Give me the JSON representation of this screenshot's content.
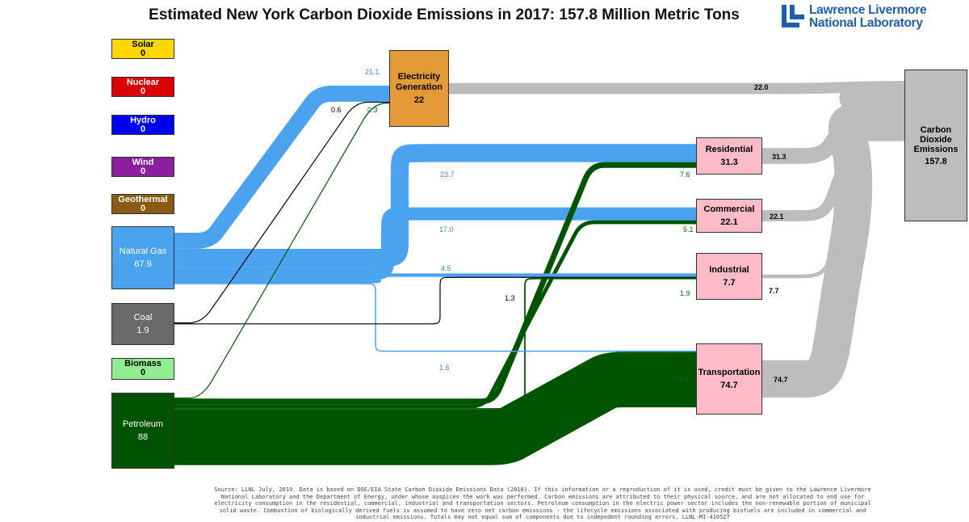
{
  "title": "Estimated New York Carbon Dioxide Emissions in 2017: 157.8 Million Metric Tons",
  "logo": {
    "line1": "Lawrence Livermore",
    "line2": "National Laboratory"
  },
  "colors": {
    "gas": "#4ba3f0",
    "petroleum": "#005400",
    "coal": "#000000",
    "emissions": "#bdbdbd",
    "enduse": "#ffbcc8",
    "electricity": "#e59a38"
  },
  "sources": [
    {
      "id": "solar",
      "name": "Solar",
      "value": "0",
      "color": "#ffd700",
      "text": "#000"
    },
    {
      "id": "nuclear",
      "name": "Nuclear",
      "value": "0",
      "color": "#d90000",
      "text": "#fff"
    },
    {
      "id": "hydro",
      "name": "Hydro",
      "value": "0",
      "color": "#0000f0",
      "text": "#fff"
    },
    {
      "id": "wind",
      "name": "Wind",
      "value": "0",
      "color": "#8b1f9e",
      "text": "#fff"
    },
    {
      "id": "geothermal",
      "name": "Geothermal",
      "value": "0",
      "color": "#8b5a12",
      "text": "#fff"
    },
    {
      "id": "gas",
      "name": "Natural Gas",
      "value": "67.9",
      "color": "#4ba3f0",
      "text": "#fff"
    },
    {
      "id": "coal",
      "name": "Coal",
      "value": "1.9",
      "color": "#6a6a6a",
      "text": "#fff"
    },
    {
      "id": "biomass",
      "name": "Biomass",
      "value": "0",
      "color": "#90ee90",
      "text": "#000"
    },
    {
      "id": "petroleum",
      "name": "Petroleum",
      "value": "88",
      "color": "#005400",
      "text": "#fff"
    }
  ],
  "sectors": [
    {
      "id": "electricity",
      "name": "Electricity Generation",
      "value": "22"
    },
    {
      "id": "residential",
      "name": "Residential",
      "value": "31.3"
    },
    {
      "id": "commercial",
      "name": "Commercial",
      "value": "22.1"
    },
    {
      "id": "industrial",
      "name": "Industrial",
      "value": "7.7"
    },
    {
      "id": "transportation",
      "name": "Transportation",
      "value": "74.7"
    }
  ],
  "total": {
    "name": "Carbon Dioxide Emissions",
    "value": "157.8"
  },
  "flows": [
    {
      "from": "gas",
      "to": "electricity",
      "value": 21.1,
      "label": "21.1"
    },
    {
      "from": "coal",
      "to": "electricity",
      "value": 0.6,
      "label": "0.6"
    },
    {
      "from": "petroleum",
      "to": "electricity",
      "value": 0.3,
      "label": "0.3"
    },
    {
      "from": "gas",
      "to": "residential",
      "value": 23.7,
      "label": "23.7"
    },
    {
      "from": "petroleum",
      "to": "residential",
      "value": 7.6,
      "label": "7.6"
    },
    {
      "from": "gas",
      "to": "commercial",
      "value": 17.0,
      "label": "17.0"
    },
    {
      "from": "petroleum",
      "to": "commercial",
      "value": 5.1,
      "label": "5.1"
    },
    {
      "from": "gas",
      "to": "industrial",
      "value": 4.5,
      "label": "4.5"
    },
    {
      "from": "coal",
      "to": "industrial",
      "value": 1.3,
      "label": "1.3"
    },
    {
      "from": "petroleum",
      "to": "industrial",
      "value": 1.9,
      "label": "1.9"
    },
    {
      "from": "gas",
      "to": "transportation",
      "value": 1.6,
      "label": "1.6"
    },
    {
      "from": "petroleum",
      "to": "transportation",
      "value": 73.1,
      "label": "73.1"
    },
    {
      "from": "electricity",
      "to": "total",
      "value": 22.0,
      "label": "22.0"
    },
    {
      "from": "residential",
      "to": "total",
      "value": 31.3,
      "label": "31.3"
    },
    {
      "from": "commercial",
      "to": "total",
      "value": 22.1,
      "label": "22.1"
    },
    {
      "from": "industrial",
      "to": "total",
      "value": 7.7,
      "label": "7.7"
    },
    {
      "from": "transportation",
      "to": "total",
      "value": 74.7,
      "label": "74.7"
    }
  ],
  "source_note": "Source: LLNL July, 2019. Data is based on DOE/EIA State Carbon Dioxide Emissions Data (2018). If this information or a reproduction of it is used, credit must be given to the Lawrence Livermore National Laboratory and the Department of Energy, under whose auspices the work was performed. Carbon emissions are attributed to their physical source, and are not allocated to end use for electricity consumption in the residential, commercial, industrial and transportation sectors. Petroleum consumption in the electric power sector includes the non-renewable portion of municipal solid waste. Combustion of biologically derived fuels is assumed to have zero net carbon emissions - the lifecycle emissions associated with producing biofuels are included in commercial and industrial emissions. Totals may not equal sum of components due to indepedent rounding errors. LLNL-MI-410527"
}
